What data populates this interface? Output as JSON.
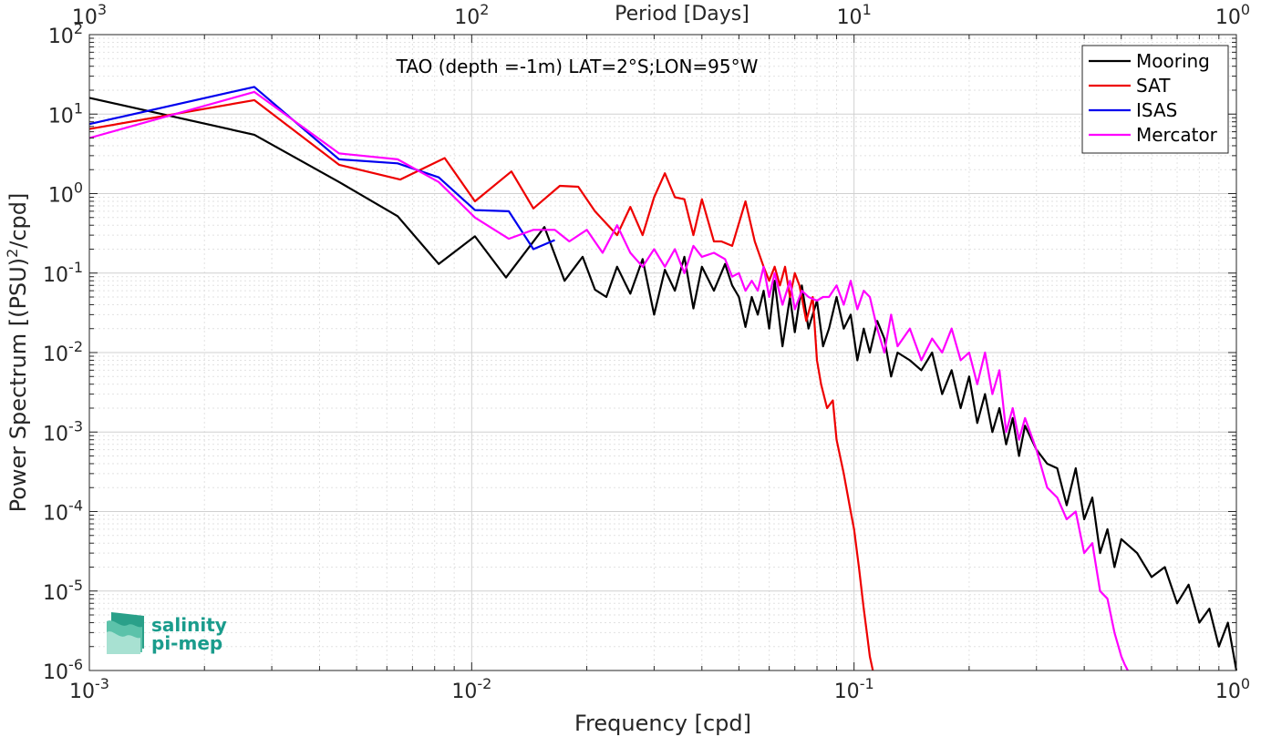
{
  "chart_data": {
    "type": "line",
    "title": "TAO (depth =-1m) LAT=2°S;LON=95°W",
    "xlabel": "Frequency [cpd]",
    "ylabel": "Power Spectrum [(PSU)2/cpd]",
    "top_xlabel": "Period [Days]",
    "x_scale": "log",
    "y_scale": "log",
    "xlim": [
      0.001,
      1
    ],
    "ylim": [
      1e-06,
      100
    ],
    "grid": true,
    "legend_position": "top-right",
    "x_tick_labels": [
      {
        "base": "10",
        "exp": "-3"
      },
      {
        "base": "10",
        "exp": "-2"
      },
      {
        "base": "10",
        "exp": "-1"
      },
      {
        "base": "10",
        "exp": "0"
      }
    ],
    "top_tick_labels": [
      {
        "base": "10",
        "exp": "3"
      },
      {
        "base": "10",
        "exp": "2"
      },
      {
        "base": "10",
        "exp": "1"
      },
      {
        "base": "10",
        "exp": "0"
      }
    ],
    "y_tick_labels": [
      {
        "base": "10",
        "exp": "2"
      },
      {
        "base": "10",
        "exp": "1"
      },
      {
        "base": "10",
        "exp": "0"
      },
      {
        "base": "10",
        "exp": "-1"
      },
      {
        "base": "10",
        "exp": "-2"
      },
      {
        "base": "10",
        "exp": "-3"
      },
      {
        "base": "10",
        "exp": "-4"
      },
      {
        "base": "10",
        "exp": "-5"
      },
      {
        "base": "10",
        "exp": "-6"
      }
    ],
    "series": [
      {
        "name": "Mooring",
        "color": "#000000",
        "x": [
          0.001,
          0.0027,
          0.0045,
          0.0064,
          0.0082,
          0.0102,
          0.0123,
          0.0155,
          0.0175,
          0.0195,
          0.021,
          0.0225,
          0.024,
          0.026,
          0.028,
          0.03,
          0.032,
          0.034,
          0.036,
          0.038,
          0.04,
          0.043,
          0.046,
          0.048,
          0.05,
          0.052,
          0.054,
          0.056,
          0.058,
          0.06,
          0.062,
          0.065,
          0.068,
          0.07,
          0.073,
          0.076,
          0.08,
          0.083,
          0.086,
          0.09,
          0.094,
          0.098,
          0.102,
          0.106,
          0.11,
          0.115,
          0.12,
          0.125,
          0.13,
          0.14,
          0.15,
          0.16,
          0.17,
          0.18,
          0.19,
          0.2,
          0.21,
          0.22,
          0.23,
          0.24,
          0.25,
          0.26,
          0.27,
          0.28,
          0.3,
          0.32,
          0.34,
          0.36,
          0.38,
          0.4,
          0.42,
          0.44,
          0.46,
          0.48,
          0.5,
          0.55,
          0.6,
          0.65,
          0.7,
          0.75,
          0.8,
          0.85,
          0.9,
          0.95,
          1.0
        ],
        "y": [
          16,
          5.5,
          1.4,
          0.52,
          0.13,
          0.29,
          0.088,
          0.38,
          0.08,
          0.16,
          0.062,
          0.05,
          0.12,
          0.055,
          0.15,
          0.03,
          0.11,
          0.06,
          0.16,
          0.036,
          0.12,
          0.06,
          0.13,
          0.07,
          0.05,
          0.021,
          0.05,
          0.03,
          0.06,
          0.02,
          0.08,
          0.012,
          0.05,
          0.018,
          0.07,
          0.02,
          0.045,
          0.012,
          0.02,
          0.05,
          0.02,
          0.03,
          0.008,
          0.02,
          0.01,
          0.025,
          0.015,
          0.005,
          0.01,
          0.008,
          0.006,
          0.01,
          0.003,
          0.006,
          0.002,
          0.005,
          0.0013,
          0.003,
          0.001,
          0.002,
          0.0007,
          0.0015,
          0.0005,
          0.0012,
          0.0006,
          0.0004,
          0.00035,
          0.00012,
          0.00035,
          8e-05,
          0.00015,
          3e-05,
          6e-05,
          2e-05,
          4.5e-05,
          3e-05,
          1.5e-05,
          2e-05,
          7e-06,
          1.2e-05,
          4e-06,
          6e-06,
          2e-06,
          4e-06,
          1e-06
        ]
      },
      {
        "name": "SAT",
        "color": "#ee0000",
        "x": [
          0.001,
          0.0027,
          0.0045,
          0.0065,
          0.0085,
          0.0102,
          0.0127,
          0.0145,
          0.017,
          0.019,
          0.021,
          0.024,
          0.026,
          0.028,
          0.03,
          0.032,
          0.034,
          0.036,
          0.038,
          0.04,
          0.043,
          0.045,
          0.048,
          0.052,
          0.055,
          0.058,
          0.06,
          0.062,
          0.064,
          0.066,
          0.068,
          0.07,
          0.072,
          0.075,
          0.078,
          0.08,
          0.082,
          0.085,
          0.088,
          0.09,
          0.094,
          0.098,
          0.1,
          0.103,
          0.106,
          0.108,
          0.11,
          0.112
        ],
        "y": [
          6.5,
          15,
          2.3,
          1.5,
          2.8,
          0.8,
          1.9,
          0.65,
          1.25,
          1.22,
          0.6,
          0.3,
          0.68,
          0.3,
          0.9,
          1.8,
          0.9,
          0.85,
          0.3,
          0.85,
          0.25,
          0.25,
          0.22,
          0.8,
          0.25,
          0.12,
          0.08,
          0.12,
          0.07,
          0.12,
          0.05,
          0.1,
          0.07,
          0.025,
          0.05,
          0.008,
          0.004,
          0.002,
          0.0025,
          0.0008,
          0.0003,
          0.0001,
          6e-05,
          2e-05,
          6e-06,
          3e-06,
          1.5e-06,
          1e-06
        ]
      },
      {
        "name": "ISAS",
        "color": "#0000ee",
        "x": [
          0.001,
          0.0027,
          0.0045,
          0.0064,
          0.0082,
          0.0102,
          0.0125,
          0.0145,
          0.0165
        ],
        "y": [
          7.5,
          22,
          2.7,
          2.4,
          1.6,
          0.62,
          0.6,
          0.2,
          0.26
        ]
      },
      {
        "name": "Mercator",
        "color": "#ff00ff",
        "x": [
          0.001,
          0.0027,
          0.0045,
          0.0064,
          0.0082,
          0.0102,
          0.0125,
          0.0145,
          0.0165,
          0.018,
          0.02,
          0.022,
          0.024,
          0.026,
          0.028,
          0.03,
          0.032,
          0.034,
          0.036,
          0.038,
          0.04,
          0.043,
          0.046,
          0.048,
          0.05,
          0.052,
          0.054,
          0.056,
          0.058,
          0.06,
          0.062,
          0.065,
          0.068,
          0.07,
          0.073,
          0.076,
          0.08,
          0.083,
          0.086,
          0.09,
          0.094,
          0.098,
          0.102,
          0.106,
          0.11,
          0.115,
          0.12,
          0.125,
          0.13,
          0.14,
          0.15,
          0.16,
          0.17,
          0.18,
          0.19,
          0.2,
          0.21,
          0.22,
          0.23,
          0.24,
          0.25,
          0.26,
          0.27,
          0.28,
          0.3,
          0.32,
          0.34,
          0.36,
          0.38,
          0.4,
          0.42,
          0.44,
          0.46,
          0.48,
          0.5,
          0.51,
          0.52
        ],
        "y": [
          5,
          19,
          3.2,
          2.7,
          1.4,
          0.5,
          0.27,
          0.35,
          0.35,
          0.25,
          0.35,
          0.18,
          0.4,
          0.18,
          0.12,
          0.2,
          0.12,
          0.2,
          0.1,
          0.22,
          0.16,
          0.18,
          0.15,
          0.09,
          0.1,
          0.06,
          0.08,
          0.06,
          0.12,
          0.05,
          0.1,
          0.04,
          0.08,
          0.035,
          0.06,
          0.05,
          0.045,
          0.05,
          0.05,
          0.07,
          0.04,
          0.08,
          0.035,
          0.06,
          0.05,
          0.02,
          0.01,
          0.03,
          0.012,
          0.02,
          0.008,
          0.015,
          0.01,
          0.02,
          0.008,
          0.01,
          0.004,
          0.01,
          0.003,
          0.006,
          0.001,
          0.002,
          0.0008,
          0.0015,
          0.0006,
          0.0002,
          0.00015,
          8e-05,
          0.0001,
          3e-05,
          4e-05,
          1e-05,
          8e-06,
          3e-06,
          1.5e-06,
          1.2e-06,
          1e-06
        ]
      }
    ]
  },
  "logo": {
    "line1": "salinity",
    "line2": "pi-mep"
  }
}
